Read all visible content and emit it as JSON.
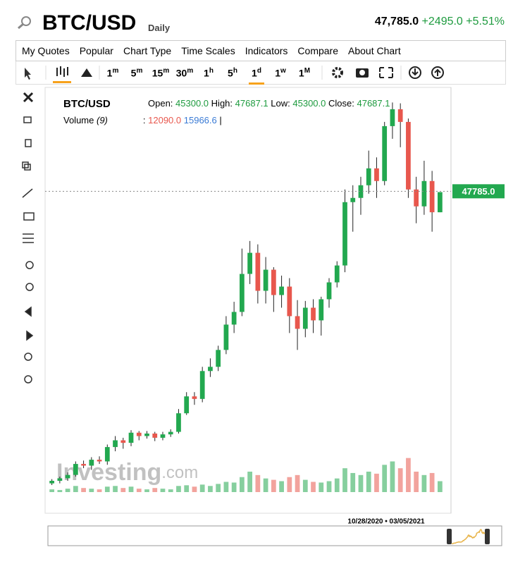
{
  "header": {
    "symbol": "BTC/USD",
    "interval": "Daily",
    "last": "47,785.0",
    "change": "+2495.0",
    "change_pct": "+5.51%"
  },
  "menu": [
    "My Quotes",
    "Popular",
    "Chart Type",
    "Time Scales",
    "Indicators",
    "Compare",
    "About Chart"
  ],
  "timescales": [
    {
      "n": "1",
      "u": "m"
    },
    {
      "n": "5",
      "u": "m"
    },
    {
      "n": "15",
      "u": "m"
    },
    {
      "n": "30",
      "u": "m"
    },
    {
      "n": "1",
      "u": "h"
    },
    {
      "n": "5",
      "u": "h"
    },
    {
      "n": "1",
      "u": "d"
    },
    {
      "n": "1",
      "u": "w"
    },
    {
      "n": "1",
      "u": "M"
    }
  ],
  "legend": {
    "symbol": "BTC/USD",
    "open_label": "Open:",
    "open": "45300.0",
    "high_label": "High:",
    "high": "47687.1",
    "low_label": "Low:",
    "low": "45300.0",
    "close_label": "Close:",
    "close": "47687.1",
    "volume_label": "Volume",
    "volume_period": "(9)",
    "volume_sep": ":",
    "volume_a": "12090.0",
    "volume_b": "15966.6",
    "volume_end": "|"
  },
  "watermark": {
    "brand": "Investing",
    "suffix": ".com"
  },
  "navigator": {
    "range": "10/28/2020 • 03/05/2021"
  },
  "chart_data": {
    "type": "candlestick",
    "open": [
      13200,
      13500,
      13800,
      14200,
      15500,
      15300,
      16000,
      15800,
      17500,
      18300,
      18000,
      19200,
      18800,
      19100,
      18600,
      19000,
      19300,
      21500,
      23500,
      23200,
      26500,
      27000,
      29000,
      32000,
      33500,
      38000,
      40500,
      36000,
      38500,
      35500,
      36500,
      33000,
      31500,
      34000,
      32500,
      35000,
      37000,
      39000,
      46500,
      47000,
      48500,
      50500,
      49000,
      55500,
      57500,
      56000,
      48000,
      46000,
      49000,
      45300
    ],
    "high": [
      13700,
      14000,
      14500,
      15800,
      15900,
      16300,
      16400,
      17800,
      18800,
      18600,
      19500,
      19400,
      19400,
      19300,
      19300,
      19600,
      22000,
      24000,
      24000,
      27000,
      28000,
      29500,
      33000,
      34700,
      41000,
      41900,
      41500,
      40000,
      38800,
      37800,
      37500,
      34900,
      34800,
      35000,
      35300,
      37500,
      39500,
      48000,
      48500,
      49500,
      52600,
      51800,
      56000,
      58300,
      58200,
      56400,
      49500,
      51400,
      50200,
      47687.1
    ],
    "low": [
      13000,
      13200,
      13500,
      14000,
      15000,
      14800,
      15500,
      15400,
      17000,
      17300,
      17600,
      18300,
      18500,
      18200,
      18300,
      18700,
      19100,
      21300,
      22500,
      22800,
      25800,
      26500,
      28500,
      31000,
      33000,
      36800,
      34500,
      34500,
      33500,
      34000,
      31000,
      29000,
      30500,
      31000,
      30700,
      34000,
      36400,
      38200,
      43000,
      45000,
      47500,
      47000,
      48500,
      54000,
      53000,
      47000,
      44000,
      45000,
      43000,
      45300
    ],
    "close": [
      13500,
      13800,
      14200,
      15500,
      15300,
      16000,
      15800,
      17500,
      18300,
      18000,
      19200,
      18800,
      19100,
      18600,
      19000,
      19300,
      21500,
      23500,
      23200,
      26500,
      27000,
      29000,
      32000,
      33500,
      38000,
      40500,
      36000,
      38500,
      35500,
      36500,
      33000,
      31500,
      34000,
      32500,
      35000,
      37000,
      39000,
      46500,
      47000,
      48500,
      50500,
      49000,
      55500,
      57500,
      56000,
      48000,
      46000,
      49000,
      45300,
      47687.1
    ],
    "volume": [
      4000,
      3000,
      5000,
      9000,
      6000,
      5000,
      4000,
      8000,
      9000,
      6000,
      8000,
      5000,
      4000,
      6000,
      5000,
      4000,
      9000,
      10000,
      8000,
      11000,
      9000,
      12000,
      15000,
      14000,
      22000,
      30000,
      25000,
      20000,
      18000,
      16000,
      22000,
      25000,
      18000,
      15000,
      14000,
      16000,
      20000,
      35000,
      28000,
      25000,
      30000,
      27000,
      40000,
      45000,
      35000,
      50000,
      30000,
      25000,
      28000,
      16000
    ],
    "ylim": [
      12000,
      60000
    ],
    "vlim": [
      0,
      60000
    ],
    "up_color": "#22a84f",
    "down_color": "#e8574d",
    "price_line": {
      "value": 47785,
      "label": "47785.0"
    }
  }
}
